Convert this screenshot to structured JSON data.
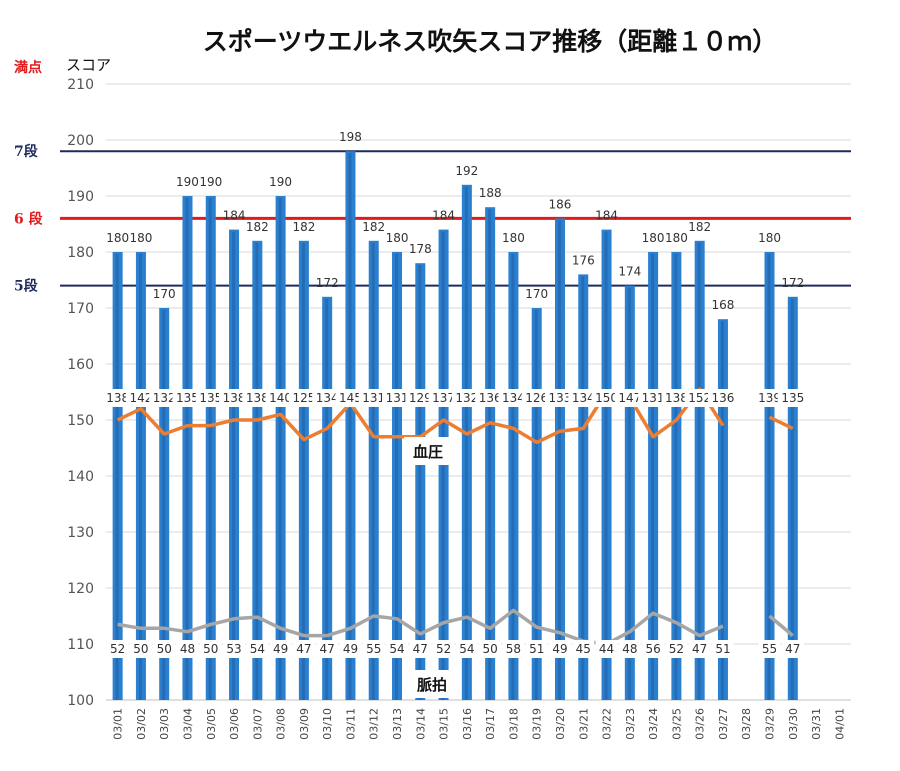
{
  "chart_data": {
    "type": "bar",
    "title": "スポーツウエルネス吹矢スコア推移（距離１０ｍ）",
    "max_label": "満点",
    "ylabel": "スコア",
    "ylim": [
      100,
      210
    ],
    "yticks": [
      100,
      110,
      120,
      130,
      140,
      150,
      160,
      170,
      180,
      190,
      200,
      210
    ],
    "grid": true,
    "categories": [
      "03/01",
      "03/02",
      "03/03",
      "03/04",
      "03/05",
      "03/06",
      "03/07",
      "03/08",
      "03/09",
      "03/10",
      "03/11",
      "03/12",
      "03/13",
      "03/14",
      "03/15",
      "03/16",
      "03/17",
      "03/18",
      "03/19",
      "03/20",
      "03/21",
      "03/22",
      "03/23",
      "03/24",
      "03/25",
      "03/26",
      "03/27",
      "03/28",
      "03/29",
      "03/30",
      "03/31",
      "04/01"
    ],
    "series": [
      {
        "name": "スコア",
        "color": "#2a7fcf",
        "values": [
          180,
          180,
          170,
          190,
          190,
          184,
          182,
          190,
          182,
          172,
          198,
          182,
          180,
          178,
          184,
          192,
          188,
          180,
          170,
          186,
          176,
          184,
          174,
          180,
          180,
          182,
          168,
          null,
          180,
          172,
          null,
          null
        ]
      },
      {
        "name": "血圧",
        "color": "#ed7d31",
        "values": [
          150,
          152,
          147.5,
          149,
          149,
          150,
          150,
          151,
          146.5,
          148.5,
          153,
          147,
          147,
          147,
          150,
          147.5,
          149.5,
          148.5,
          146,
          148,
          148.5,
          155,
          154,
          147,
          150,
          155.5,
          149,
          null,
          150.5,
          148.5,
          null,
          null
        ],
        "labels": [
          138,
          142,
          132,
          135,
          135,
          138,
          138,
          140,
          125,
          134,
          145,
          131,
          131,
          129,
          137,
          132,
          136,
          134,
          126,
          133,
          134,
          150,
          147,
          131,
          138,
          152,
          136,
          null,
          139,
          135,
          null,
          null
        ]
      },
      {
        "name": "脈拍",
        "color": "#a6a6a6",
        "values": [
          113.5,
          112.8,
          112.8,
          112.2,
          113.5,
          114.5,
          114.8,
          112.8,
          111.5,
          111.5,
          112.8,
          115,
          114.5,
          111.8,
          113.8,
          114.8,
          112.8,
          116,
          113,
          112,
          110.5,
          110,
          112.2,
          115.5,
          113.8,
          111.5,
          113.2,
          null,
          115,
          111.5,
          null,
          null
        ],
        "labels": [
          52,
          50,
          50,
          48,
          50,
          53,
          54,
          49,
          47,
          47,
          49,
          55,
          54,
          47,
          52,
          54,
          50,
          58,
          51,
          49,
          45,
          44,
          48,
          56,
          52,
          47,
          51,
          null,
          55,
          47,
          null,
          null
        ]
      }
    ],
    "reference_lines": [
      {
        "label": "7段",
        "value": 198,
        "color": "#1f2a5c"
      },
      {
        "label": "6 段",
        "value": 186,
        "color": "#e11b1b"
      },
      {
        "label": "5段",
        "value": 174,
        "color": "#1f2a5c"
      }
    ],
    "annotations": {
      "bp": "血圧",
      "pulse": "脈拍"
    }
  }
}
